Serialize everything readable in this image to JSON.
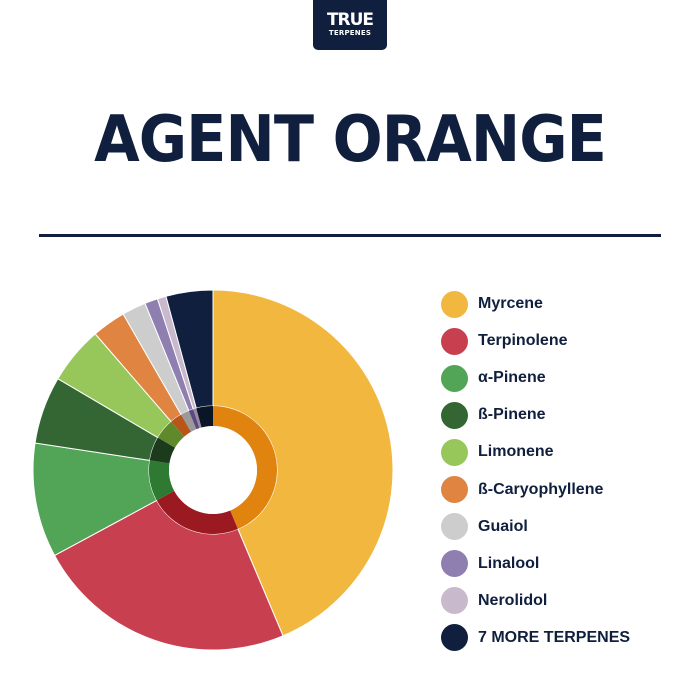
{
  "logo": {
    "line1": "TRUE",
    "line2": "TERPENES"
  },
  "title": "AGENT ORANGE",
  "chart_data": {
    "type": "pie",
    "categories": [
      "Myrcene",
      "Terpinolene",
      "α-Pinene",
      "ß-Pinene",
      "Limonene",
      "ß-Caryophyllene",
      "Guaiol",
      "Linalool",
      "Nerolidol",
      "7 MORE TERPENES"
    ],
    "values": [
      44.6,
      24.0,
      10.5,
      6.2,
      5.3,
      3.1,
      2.2,
      1.2,
      0.8,
      4.3
    ],
    "colors": [
      "#f2b73f",
      "#c8404f",
      "#52a556",
      "#346634",
      "#97c75a",
      "#e08442",
      "#cdcdcd",
      "#8f7fb1",
      "#c9b9cc",
      "#0f1f3d"
    ],
    "inner_ring": {
      "colors": [
        "#e0840f",
        "#9b1a22",
        "#2e7a32",
        "#1c3a1c",
        "#5e8a2c",
        "#b8561a",
        "#9a9a9a",
        "#5a4a80",
        "#9a8a9d",
        "#0a1628"
      ]
    },
    "legend_position": "right"
  }
}
